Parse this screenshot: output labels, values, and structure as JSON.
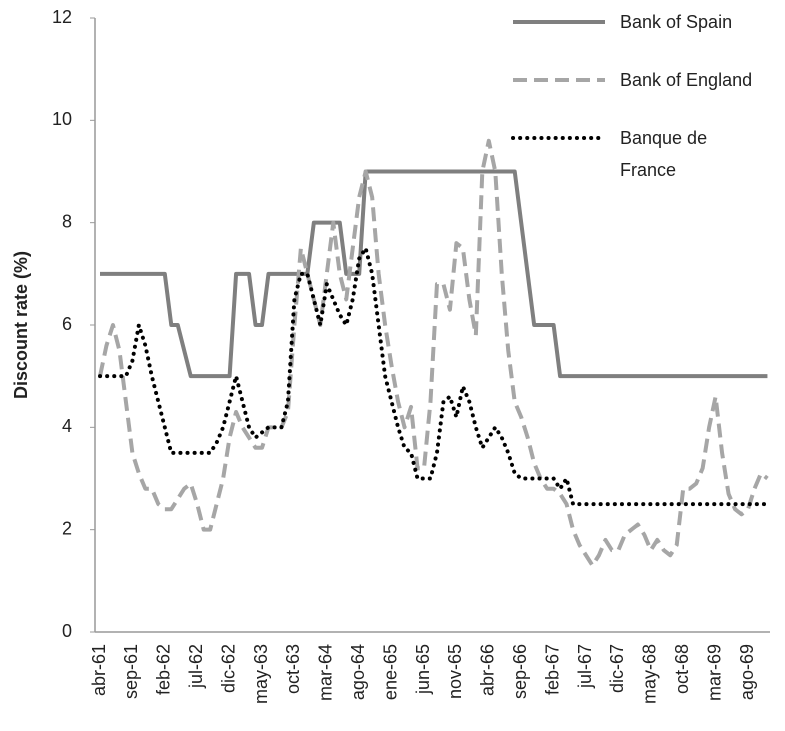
{
  "chart_data": {
    "type": "line",
    "y_label": "Discount  rate (%)",
    "categories": [
      "abr-61",
      null,
      null,
      null,
      null,
      "sep-61",
      null,
      null,
      null,
      null,
      "feb-62",
      null,
      null,
      null,
      null,
      "jul-62",
      null,
      null,
      null,
      null,
      "dic-62",
      null,
      null,
      null,
      null,
      "may-63",
      null,
      null,
      null,
      null,
      "oct-63",
      null,
      null,
      null,
      null,
      "mar-64",
      null,
      null,
      null,
      null,
      "ago-64",
      null,
      null,
      null,
      null,
      "ene-65",
      null,
      null,
      null,
      null,
      "jun-65",
      null,
      null,
      null,
      null,
      "nov-65",
      null,
      null,
      null,
      null,
      "abr-66",
      null,
      null,
      null,
      null,
      "sep-66",
      null,
      null,
      null,
      null,
      "feb-67",
      null,
      null,
      null,
      null,
      "jul-67",
      null,
      null,
      null,
      null,
      "dic-67",
      null,
      null,
      null,
      null,
      "may-68",
      null,
      null,
      null,
      null,
      "oct-68",
      null,
      null,
      null,
      null,
      "mar-69",
      null,
      null,
      null,
      null,
      "ago-69",
      null,
      null,
      null
    ],
    "series": [
      {
        "name": "Bank of Spain",
        "color": "#7f7f7f",
        "dash": "solid",
        "values": [
          7,
          7,
          7,
          7,
          7,
          7,
          7,
          7,
          7,
          7,
          7,
          6,
          6,
          5.5,
          5,
          5,
          5,
          5,
          5,
          5,
          5,
          7,
          7,
          7,
          6,
          6,
          7,
          7,
          7,
          7,
          7,
          7,
          7,
          8,
          8,
          8,
          8,
          8,
          7,
          7,
          7,
          9,
          9,
          9,
          9,
          9,
          9,
          9,
          9,
          9,
          9,
          9,
          9,
          9,
          9,
          9,
          9,
          9,
          9,
          9,
          9,
          9,
          9,
          9,
          9,
          8,
          7,
          6,
          6,
          6,
          6,
          5,
          5,
          5,
          5,
          5,
          5,
          5,
          5,
          5,
          5,
          5,
          5,
          5,
          5,
          5,
          5,
          5,
          5,
          5,
          5,
          5,
          5,
          5,
          5,
          5,
          5,
          5,
          5,
          5,
          5,
          5,
          5,
          5
        ]
      },
      {
        "name": "Bank of England",
        "color": "#a6a6a6",
        "dash": "dashed",
        "values": [
          5,
          5.6,
          6,
          5.5,
          4.5,
          3.5,
          3.1,
          2.8,
          2.8,
          2.5,
          2.4,
          2.4,
          2.6,
          2.8,
          2.9,
          2.5,
          2,
          2,
          2.5,
          3,
          3.8,
          4.3,
          4,
          3.8,
          3.6,
          3.6,
          4,
          4,
          4,
          4.3,
          6,
          7.5,
          7,
          6.5,
          6,
          7,
          8,
          7,
          6.5,
          7.5,
          8.5,
          9,
          8.5,
          7,
          6,
          5.2,
          4.5,
          4,
          4.4,
          3.2,
          3.2,
          4.5,
          6.8,
          6.8,
          6.3,
          7.6,
          7.5,
          6.5,
          5.8,
          9,
          9.6,
          9,
          7,
          5.5,
          4.5,
          4.2,
          3.8,
          3.3,
          3,
          2.8,
          2.8,
          2.7,
          2.5,
          2,
          1.7,
          1.5,
          1.3,
          1.5,
          1.8,
          1.6,
          1.6,
          1.9,
          2,
          2.1,
          1.9,
          1.6,
          1.8,
          1.6,
          1.5,
          1.7,
          2.8,
          2.8,
          2.9,
          3.2,
          4,
          4.6,
          3.5,
          2.7,
          2.4,
          2.3,
          2.4,
          2.8,
          3.1,
          3
        ]
      },
      {
        "name": "Banque de France",
        "color": "#000000",
        "dash": "dotted",
        "values": [
          5,
          5,
          5,
          5,
          5,
          5.3,
          6,
          5.6,
          5,
          4.5,
          4,
          3.5,
          3.5,
          3.5,
          3.5,
          3.5,
          3.5,
          3.5,
          3.7,
          4,
          4.5,
          5,
          4.5,
          4,
          3.8,
          3.9,
          4,
          4,
          4,
          4.5,
          6.5,
          7,
          7,
          6.5,
          6,
          6.8,
          6.5,
          6.2,
          6,
          6.5,
          7.3,
          7.5,
          7,
          6,
          5,
          4.5,
          4,
          3.6,
          3.5,
          3,
          3,
          3,
          3.5,
          4.5,
          4.6,
          4.2,
          4.8,
          4.5,
          4,
          3.6,
          3.8,
          4,
          3.8,
          3.5,
          3.1,
          3,
          3,
          3,
          3,
          3,
          3,
          2.8,
          3,
          2.5,
          2.5,
          2.5,
          2.5,
          2.5,
          2.5,
          2.5,
          2.5,
          2.5,
          2.5,
          2.5,
          2.5,
          2.5,
          2.5,
          2.5,
          2.5,
          2.5,
          2.5,
          2.5,
          2.5,
          2.5,
          2.5,
          2.5,
          2.5,
          2.5,
          2.5,
          2.5,
          2.5,
          2.5,
          2.5,
          2.5
        ]
      }
    ],
    "ylim": [
      0,
      12
    ],
    "yticks": [
      0,
      2,
      4,
      6,
      8,
      10,
      12
    ],
    "grid": false,
    "legend": "top-right"
  }
}
